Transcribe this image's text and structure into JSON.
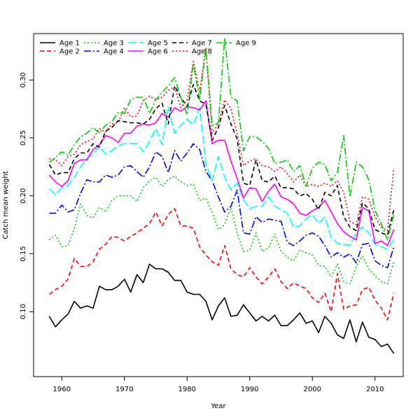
{
  "chart_data": {
    "type": "line",
    "title": "",
    "xlabel": "Year",
    "ylabel": "Catch mean weight",
    "xlim": [
      1955.5,
      2014.5
    ],
    "ylim": [
      0.044,
      0.34
    ],
    "x_ticks": [
      1960,
      1970,
      1980,
      1990,
      2000,
      2010
    ],
    "y_ticks": [
      0.1,
      0.15,
      0.2,
      0.25,
      0.3
    ],
    "grid": false,
    "legend_position": "top-left",
    "x": [
      1958,
      1959,
      1960,
      1961,
      1962,
      1963,
      1964,
      1965,
      1966,
      1967,
      1968,
      1969,
      1970,
      1971,
      1972,
      1973,
      1974,
      1975,
      1976,
      1977,
      1978,
      1979,
      1980,
      1981,
      1982,
      1983,
      1984,
      1985,
      1986,
      1987,
      1988,
      1989,
      1990,
      1991,
      1992,
      1993,
      1994,
      1995,
      1996,
      1997,
      1998,
      1999,
      2000,
      2001,
      2002,
      2003,
      2004,
      2005,
      2006,
      2007,
      2008,
      2009,
      2010,
      2011,
      2012,
      2013
    ],
    "series": [
      {
        "name": "Age 1",
        "color": "#000000",
        "dash": "solid",
        "values": [
          0.096,
          0.087,
          0.093,
          0.098,
          0.109,
          0.103,
          0.105,
          0.103,
          0.122,
          0.119,
          0.119,
          0.122,
          0.128,
          0.117,
          0.132,
          0.125,
          0.141,
          0.137,
          0.137,
          0.134,
          0.127,
          0.127,
          0.117,
          0.115,
          0.115,
          0.109,
          0.093,
          0.105,
          0.112,
          0.096,
          0.097,
          0.106,
          0.099,
          0.092,
          0.096,
          0.092,
          0.097,
          0.088,
          0.088,
          0.093,
          0.099,
          0.09,
          0.092,
          0.082,
          0.096,
          0.09,
          0.08,
          0.077,
          0.093,
          0.074,
          0.091,
          0.078,
          0.076,
          0.07,
          0.072,
          0.064
        ]
      },
      {
        "name": "Age 2",
        "color": "#ff0000",
        "dash": "6,4",
        "values": [
          0.115,
          0.119,
          0.122,
          0.128,
          0.146,
          0.139,
          0.139,
          0.143,
          0.154,
          0.158,
          0.165,
          0.164,
          0.161,
          0.165,
          0.168,
          0.172,
          0.176,
          0.186,
          0.174,
          0.184,
          0.189,
          0.174,
          0.174,
          0.172,
          0.156,
          0.149,
          0.143,
          0.14,
          0.157,
          0.137,
          0.132,
          0.13,
          0.138,
          0.13,
          0.124,
          0.13,
          0.137,
          0.126,
          0.12,
          0.125,
          0.122,
          0.12,
          0.112,
          0.108,
          0.116,
          0.1,
          0.133,
          0.102,
          0.105,
          0.106,
          0.119,
          0.121,
          0.11,
          0.103,
          0.093,
          0.116
        ]
      },
      {
        "name": "Age 3",
        "color": "#00cd00",
        "dash": "2,3",
        "values": [
          0.162,
          0.166,
          0.156,
          0.157,
          0.172,
          0.193,
          0.183,
          0.181,
          0.19,
          0.186,
          0.196,
          0.2,
          0.2,
          0.2,
          0.195,
          0.207,
          0.213,
          0.216,
          0.208,
          0.214,
          0.217,
          0.212,
          0.209,
          0.21,
          0.196,
          0.198,
          0.186,
          0.171,
          0.175,
          0.19,
          0.168,
          0.152,
          0.153,
          0.168,
          0.152,
          0.155,
          0.167,
          0.152,
          0.147,
          0.144,
          0.153,
          0.151,
          0.149,
          0.14,
          0.139,
          0.13,
          0.141,
          0.126,
          0.124,
          0.139,
          0.148,
          0.137,
          0.131,
          0.126,
          0.124,
          0.143
        ]
      },
      {
        "name": "Age 4",
        "color": "#0000ff",
        "dash": "10,3,2,3",
        "values": [
          0.185,
          0.185,
          0.192,
          0.186,
          0.188,
          0.202,
          0.214,
          0.212,
          0.212,
          0.218,
          0.216,
          0.218,
          0.225,
          0.226,
          0.221,
          0.216,
          0.225,
          0.238,
          0.234,
          0.22,
          0.239,
          0.23,
          0.237,
          0.245,
          0.24,
          0.221,
          0.213,
          0.199,
          0.186,
          0.191,
          0.205,
          0.168,
          0.167,
          0.182,
          0.177,
          0.18,
          0.179,
          0.178,
          0.16,
          0.157,
          0.161,
          0.166,
          0.168,
          0.165,
          0.157,
          0.147,
          0.151,
          0.147,
          0.15,
          0.142,
          0.158,
          0.159,
          0.144,
          0.14,
          0.138,
          0.156
        ]
      },
      {
        "name": "Age 5",
        "color": "#00ffff",
        "dash": "12,4",
        "values": [
          0.206,
          0.201,
          0.207,
          0.209,
          0.216,
          0.225,
          0.232,
          0.236,
          0.243,
          0.236,
          0.239,
          0.243,
          0.245,
          0.245,
          0.245,
          0.238,
          0.247,
          0.258,
          0.244,
          0.277,
          0.254,
          0.261,
          0.266,
          0.261,
          0.276,
          0.228,
          0.213,
          0.234,
          0.216,
          0.205,
          0.211,
          0.197,
          0.189,
          0.191,
          0.191,
          0.199,
          0.191,
          0.188,
          0.185,
          0.173,
          0.174,
          0.18,
          0.184,
          0.176,
          0.182,
          0.164,
          0.159,
          0.158,
          0.157,
          0.168,
          0.173,
          0.168,
          0.158,
          0.156,
          0.154,
          0.162
        ]
      },
      {
        "name": "Age 6",
        "color": "#ff00ff",
        "dash": "solid",
        "values": [
          0.218,
          0.212,
          0.208,
          0.213,
          0.228,
          0.231,
          0.231,
          0.24,
          0.244,
          0.252,
          0.25,
          0.246,
          0.254,
          0.254,
          0.26,
          0.262,
          0.261,
          0.263,
          0.271,
          0.268,
          0.276,
          0.273,
          0.277,
          0.276,
          0.274,
          0.282,
          0.245,
          0.248,
          0.248,
          0.23,
          0.215,
          0.198,
          0.207,
          0.206,
          0.195,
          0.204,
          0.21,
          0.199,
          0.197,
          0.193,
          0.185,
          0.183,
          0.187,
          0.19,
          0.196,
          0.186,
          0.176,
          0.169,
          0.165,
          0.162,
          0.19,
          0.187,
          0.159,
          0.161,
          0.157,
          0.171
        ]
      },
      {
        "name": "Age 7",
        "color": "#000000",
        "dash": "6,4",
        "values": [
          0.227,
          0.218,
          0.22,
          0.22,
          0.232,
          0.237,
          0.237,
          0.245,
          0.242,
          0.256,
          0.259,
          0.265,
          0.264,
          0.263,
          0.263,
          0.262,
          0.266,
          0.275,
          0.28,
          0.262,
          0.295,
          0.285,
          0.277,
          0.296,
          0.282,
          0.279,
          0.248,
          0.259,
          0.278,
          0.262,
          0.249,
          0.211,
          0.209,
          0.231,
          0.213,
          0.212,
          0.217,
          0.207,
          0.207,
          0.206,
          0.2,
          0.202,
          0.197,
          0.188,
          0.203,
          0.2,
          0.209,
          0.182,
          0.173,
          0.17,
          0.194,
          0.189,
          0.171,
          0.168,
          0.166,
          0.188
        ]
      },
      {
        "name": "Age 8",
        "color": "#ff0000",
        "dash": "2,3",
        "values": [
          0.232,
          0.231,
          0.226,
          0.234,
          0.236,
          0.244,
          0.247,
          0.249,
          0.258,
          0.255,
          0.262,
          0.263,
          0.276,
          0.268,
          0.269,
          0.282,
          0.286,
          0.283,
          0.285,
          0.291,
          0.294,
          0.276,
          0.283,
          0.316,
          0.29,
          0.328,
          0.254,
          0.263,
          0.283,
          0.275,
          0.254,
          0.226,
          0.23,
          0.232,
          0.226,
          0.225,
          0.221,
          0.225,
          0.219,
          0.212,
          0.218,
          0.208,
          0.21,
          0.208,
          0.211,
          0.208,
          0.213,
          0.203,
          0.178,
          0.175,
          0.199,
          0.197,
          0.182,
          0.173,
          0.17,
          0.224
        ]
      },
      {
        "name": "Age 9",
        "color": "#00cd00",
        "dash": "10,3,2,3",
        "values": [
          0.229,
          0.233,
          0.238,
          0.235,
          0.244,
          0.251,
          0.254,
          0.259,
          0.254,
          0.261,
          0.264,
          0.272,
          0.271,
          0.283,
          0.285,
          0.285,
          0.271,
          0.283,
          0.289,
          0.295,
          0.302,
          0.285,
          0.27,
          0.314,
          0.283,
          0.327,
          0.261,
          0.263,
          0.336,
          0.285,
          0.282,
          0.239,
          0.251,
          0.251,
          0.247,
          0.241,
          0.228,
          0.229,
          0.231,
          0.221,
          0.226,
          0.208,
          0.224,
          0.229,
          0.227,
          0.213,
          0.22,
          0.252,
          0.199,
          0.229,
          0.225,
          0.214,
          0.187,
          0.176,
          0.162,
          0.184
        ]
      }
    ]
  }
}
